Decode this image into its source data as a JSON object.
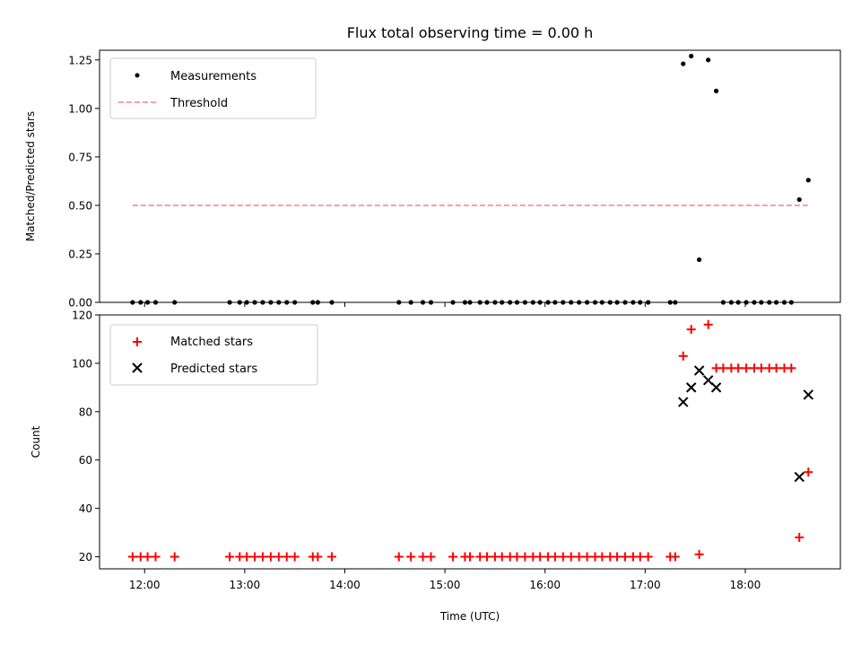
{
  "chart_data": [
    {
      "type": "scatter",
      "title": "Flux total observing time = 0.00 h",
      "xlabel": "",
      "ylabel": "Matched/Predicted stars",
      "xlim": [
        11.55,
        18.95
      ],
      "ylim": [
        0,
        1.3
      ],
      "yticks": [
        0,
        0.25,
        0.5,
        0.75,
        1.0,
        1.25
      ],
      "ytick_labels": [
        "0.00",
        "0.25",
        "0.50",
        "0.75",
        "1.00",
        "1.25"
      ],
      "legend_position": "top-left",
      "series": [
        {
          "name": "Measurements",
          "kind": "points",
          "color": "#000000",
          "x": [
            11.88,
            11.96,
            12.03,
            12.11,
            12.3,
            12.85,
            12.95,
            13.02,
            13.1,
            13.18,
            13.26,
            13.34,
            13.42,
            13.5,
            13.68,
            13.73,
            13.87,
            14.54,
            14.66,
            14.78,
            14.86,
            15.08,
            15.2,
            15.25,
            15.35,
            15.42,
            15.5,
            15.57,
            15.65,
            15.72,
            15.8,
            15.88,
            15.95,
            16.03,
            16.1,
            16.18,
            16.26,
            16.34,
            16.42,
            16.5,
            16.57,
            16.65,
            16.72,
            16.8,
            16.88,
            16.95,
            17.03,
            17.25,
            17.3,
            17.38,
            17.46,
            17.54,
            17.63,
            17.71,
            17.78,
            17.86,
            17.93,
            18.01,
            18.09,
            18.16,
            18.24,
            18.31,
            18.39,
            18.46,
            18.54,
            18.63
          ],
          "y": [
            0,
            0,
            0,
            0,
            0,
            0,
            0,
            0,
            0,
            0,
            0,
            0,
            0,
            0,
            0,
            0,
            0,
            0,
            0,
            0,
            0,
            0,
            0,
            0,
            0,
            0,
            0,
            0,
            0,
            0,
            0,
            0,
            0,
            0,
            0,
            0,
            0,
            0,
            0,
            0,
            0,
            0,
            0,
            0,
            0,
            0,
            0,
            0,
            0,
            1.23,
            1.27,
            0.22,
            1.25,
            1.09,
            0,
            0,
            0,
            0,
            0,
            0,
            0,
            0,
            0,
            0,
            0.53,
            0.63
          ]
        },
        {
          "name": "Threshold",
          "kind": "dashed-line",
          "color": "#ff7f7f",
          "x": [
            11.88,
            18.63
          ],
          "y": [
            0.5,
            0.5
          ]
        }
      ]
    },
    {
      "type": "scatter",
      "title": "",
      "xlabel": "Time (UTC)",
      "ylabel": "Count",
      "xlim": [
        11.55,
        18.95
      ],
      "ylim": [
        15,
        120
      ],
      "yticks": [
        20,
        40,
        60,
        80,
        100,
        120
      ],
      "ytick_labels": [
        "20",
        "40",
        "60",
        "80",
        "100",
        "120"
      ],
      "xticks": [
        12,
        13,
        14,
        15,
        16,
        17,
        18
      ],
      "xtick_labels": [
        "12:00",
        "13:00",
        "14:00",
        "15:00",
        "16:00",
        "17:00",
        "18:00"
      ],
      "legend_position": "top-left",
      "series": [
        {
          "name": "Matched stars",
          "kind": "plus",
          "color": "#ff0000",
          "x": [
            11.88,
            11.96,
            12.03,
            12.11,
            12.3,
            12.85,
            12.95,
            13.02,
            13.1,
            13.18,
            13.26,
            13.34,
            13.42,
            13.5,
            13.68,
            13.73,
            13.87,
            14.54,
            14.66,
            14.78,
            14.86,
            15.08,
            15.2,
            15.25,
            15.35,
            15.42,
            15.5,
            15.57,
            15.65,
            15.72,
            15.8,
            15.88,
            15.95,
            16.03,
            16.1,
            16.18,
            16.26,
            16.34,
            16.42,
            16.5,
            16.57,
            16.65,
            16.72,
            16.8,
            16.88,
            16.95,
            17.03,
            17.25,
            17.3,
            17.38,
            17.46,
            17.54,
            17.63,
            17.71,
            17.78,
            17.86,
            17.93,
            18.01,
            18.09,
            18.16,
            18.24,
            18.31,
            18.39,
            18.46,
            18.54,
            18.63
          ],
          "y": [
            20,
            20,
            20,
            20,
            20,
            20,
            20,
            20,
            20,
            20,
            20,
            20,
            20,
            20,
            20,
            20,
            20,
            20,
            20,
            20,
            20,
            20,
            20,
            20,
            20,
            20,
            20,
            20,
            20,
            20,
            20,
            20,
            20,
            20,
            20,
            20,
            20,
            20,
            20,
            20,
            20,
            20,
            20,
            20,
            20,
            20,
            20,
            20,
            20,
            103,
            114,
            21,
            116,
            98,
            98,
            98,
            98,
            98,
            98,
            98,
            98,
            98,
            98,
            98,
            28,
            55
          ]
        },
        {
          "name": "Predicted stars",
          "kind": "cross",
          "color": "#000000",
          "x": [
            17.38,
            17.46,
            17.54,
            17.63,
            17.71,
            18.54,
            18.63
          ],
          "y": [
            84,
            90,
            97,
            93,
            90,
            53,
            87
          ]
        }
      ]
    }
  ]
}
